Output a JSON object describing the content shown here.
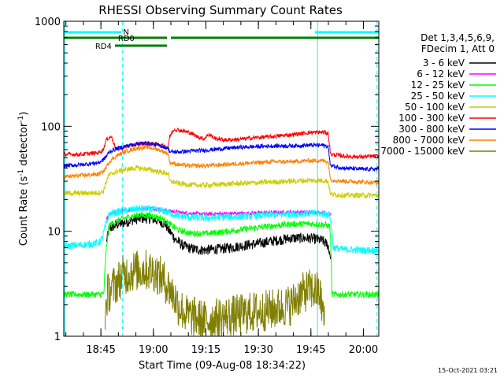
{
  "chart_data": {
    "type": "line",
    "title": "RHESSI Observing Summary Count Rates",
    "xlabel": "Start Time (09-Aug-08 18:34:22)",
    "ylabel_prefix": "Count Rate (s",
    "ylabel_sup1": "-1",
    "ylabel_mid": " detector",
    "ylabel_sup2": "-1",
    "ylabel_suffix": ")",
    "y_scale": "log",
    "ylim": [
      1,
      1000
    ],
    "y_ticks": [
      1,
      10,
      100,
      1000
    ],
    "y_tick_labels": [
      "1",
      "10",
      "100",
      "1000"
    ],
    "x_unit": "minutes after 18:34:22",
    "xlim": [
      0,
      90
    ],
    "x_ticks": [
      10.6,
      25.6,
      40.6,
      55.6,
      70.6,
      85.6
    ],
    "x_tick_labels": [
      "18:45",
      "19:00",
      "19:15",
      "19:30",
      "19:45",
      "20:00"
    ],
    "legend_header": [
      "Det 1,3,4,5,6,9,",
      "FDecim 1, Att 0"
    ],
    "legend_placement": "right",
    "footer": "15-Oct-2021 03:21",
    "flags": [
      {
        "label": "N",
        "color": "#00ffff",
        "segments": [
          [
            0,
            16.5
          ],
          [
            71.7,
            90
          ]
        ]
      },
      {
        "label": "RD0",
        "color": "#007f00",
        "segments": [
          [
            0,
            29.5
          ],
          [
            30.6,
            90
          ]
        ]
      },
      {
        "label": "RD4",
        "color": "#007f00",
        "segments": [
          [
            14.6,
            29.5
          ]
        ]
      }
    ],
    "vlines_solid": [
      0.3,
      72.5
    ],
    "vlines_dashed": [
      16.8,
      89.5
    ],
    "vline_color": "#00ffff",
    "series": [
      {
        "name": "3 - 6 keV",
        "color": "#000000",
        "x": [
          12.2,
          13,
          15,
          17,
          19,
          21,
          23,
          25,
          27,
          29,
          30,
          32,
          34,
          36,
          38,
          40,
          45,
          50,
          55,
          60,
          65,
          70,
          72,
          74,
          75.5,
          76.2
        ],
        "y": [
          8,
          10.5,
          11.5,
          12,
          12.6,
          13.1,
          13.3,
          13.1,
          12.6,
          11.7,
          10.2,
          8.3,
          7.3,
          6.9,
          6.7,
          6.6,
          6.8,
          7.2,
          7.6,
          8.1,
          8.6,
          8.6,
          8.4,
          8.1,
          7.3,
          5.8
        ],
        "noise": 0.05
      },
      {
        "name": "6 - 12 keV",
        "color": "#ff00ff",
        "x": [
          12.2,
          13,
          16,
          19,
          22,
          25,
          28,
          30,
          33,
          36,
          40,
          45,
          50,
          55,
          60,
          65,
          70,
          74,
          76.2
        ],
        "y": [
          13,
          14.5,
          15.3,
          16,
          16.5,
          16.5,
          16.1,
          15.6,
          15.1,
          14.8,
          14.6,
          14.7,
          14.8,
          15,
          15.1,
          15.2,
          15.2,
          15.1,
          14.6
        ],
        "noise": 0.018
      },
      {
        "name": "12 - 25 keV",
        "color": "#00ff00",
        "x": [
          0,
          4,
          8,
          10.5,
          11.5,
          12.2,
          13,
          16,
          19,
          22,
          25,
          28,
          30,
          33,
          36,
          40,
          45,
          50,
          55,
          60,
          65,
          70,
          74,
          76,
          76.6,
          90
        ],
        "y": [
          2.5,
          2.5,
          2.5,
          2.5,
          2.6,
          7,
          11.5,
          12.8,
          13.8,
          14.3,
          14.1,
          13.2,
          11.8,
          10.2,
          9.6,
          9.5,
          9.8,
          10.3,
          10.8,
          11.3,
          11.7,
          11.8,
          11.6,
          11.2,
          2.5,
          2.5
        ],
        "noise": 0.03
      },
      {
        "name": "25 - 50 keV",
        "color": "#00ffff",
        "x": [
          0,
          2,
          5,
          8,
          10,
          11,
          12.2,
          13,
          16,
          19,
          22,
          25,
          28,
          30,
          33,
          36,
          40,
          45,
          50,
          55,
          60,
          65,
          70,
          74,
          76,
          77,
          80,
          85,
          90
        ],
        "y": [
          7.2,
          7.3,
          7.4,
          7.6,
          7.8,
          8.6,
          12,
          14.6,
          15.4,
          16,
          16.4,
          16.2,
          15.7,
          15,
          14,
          13.5,
          13.4,
          13.6,
          13.8,
          14,
          14.3,
          14.6,
          14.8,
          14.7,
          14.3,
          7,
          6.7,
          6.6,
          6.6
        ],
        "noise": 0.035
      },
      {
        "name": "50 - 100 keV",
        "color": "#cccc00",
        "x": [
          0,
          5,
          10,
          11.3,
          12.2,
          12.8,
          15,
          18,
          21,
          24,
          27,
          29.8,
          30.3,
          33,
          37,
          41,
          45,
          50,
          55,
          60,
          65,
          70,
          74,
          75.5,
          76.2,
          80,
          85,
          90
        ],
        "y": [
          23,
          23,
          23.3,
          24,
          30,
          34,
          37,
          39,
          40,
          39,
          37,
          35.5,
          30,
          28.5,
          27.5,
          27.5,
          28,
          28.5,
          29,
          29.5,
          30,
          30.5,
          30.5,
          30,
          22.5,
          22,
          22,
          22
        ],
        "noise": 0.025
      },
      {
        "name": "100 - 300 keV",
        "color": "#ff0000",
        "x": [
          0,
          5,
          10,
          11.3,
          12.2,
          13.5,
          15,
          18,
          21,
          24,
          27,
          29.8,
          30.3,
          31.5,
          33,
          36,
          38,
          40,
          41.5,
          43,
          46,
          50,
          55,
          60,
          65,
          70,
          74,
          75.5,
          76.2,
          80,
          85,
          90
        ],
        "y": [
          54,
          54,
          56,
          60,
          75,
          80,
          60,
          64,
          68,
          69,
          67,
          63,
          80,
          94,
          92,
          87,
          80,
          76,
          84,
          77,
          74,
          75,
          78,
          80,
          83,
          87,
          88,
          86,
          54,
          52,
          51,
          52
        ],
        "noise": 0.02
      },
      {
        "name": "300 - 800 keV",
        "color": "#0000ff",
        "x": [
          0,
          5,
          10,
          11.3,
          12.2,
          13,
          15,
          18,
          21,
          24,
          27,
          29.8,
          30.3,
          33,
          36,
          40,
          45,
          50,
          55,
          60,
          65,
          70,
          74,
          75.5,
          76.2,
          80,
          85,
          90
        ],
        "y": [
          42,
          43,
          45,
          48,
          52,
          57,
          61,
          65,
          68,
          69,
          66,
          62,
          57,
          57,
          58,
          59,
          61,
          63,
          64,
          65,
          65,
          66,
          66,
          64,
          42,
          40,
          39,
          39
        ],
        "noise": 0.02
      },
      {
        "name": "800 - 7000 keV",
        "color": "#ff8000",
        "x": [
          0,
          5,
          10,
          11.3,
          12.2,
          13,
          15,
          18,
          21,
          24,
          27,
          29.8,
          30.3,
          33,
          36,
          40,
          45,
          50,
          55,
          60,
          65,
          70,
          74,
          75.5,
          76.2,
          80,
          85,
          90
        ],
        "y": [
          33,
          34,
          35,
          37,
          41,
          46,
          52,
          58,
          62,
          63,
          60,
          55,
          45,
          43,
          42,
          42,
          43,
          44,
          45,
          46,
          46,
          47,
          47,
          46,
          31,
          30,
          29.5,
          29
        ],
        "noise": 0.02
      },
      {
        "name": "7000 - 15000 keV",
        "color": "#807f00",
        "x": [
          11.8,
          12.5,
          15,
          17,
          20,
          23,
          26,
          28,
          30,
          32,
          33,
          35,
          38,
          40,
          45,
          50,
          55,
          60,
          65,
          67,
          70,
          73,
          74.5
        ],
        "y": [
          1.6,
          2.5,
          3.2,
          3.8,
          4.2,
          4.3,
          4.1,
          3.6,
          2.9,
          2.2,
          1.9,
          1.6,
          1.5,
          1.4,
          1.5,
          1.6,
          1.7,
          1.8,
          2.0,
          2.4,
          2.8,
          2.6,
          1.3
        ],
        "noise": 0.2
      }
    ]
  }
}
